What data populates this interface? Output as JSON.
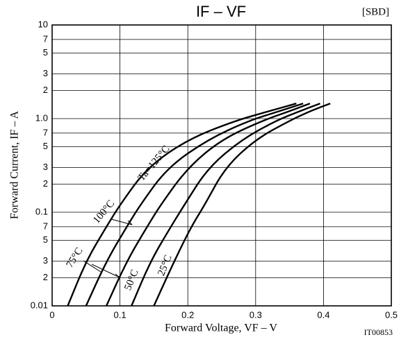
{
  "chart_data": {
    "type": "line",
    "title": "IF – VF",
    "annotations": [
      "[SBD]",
      "IT00853"
    ],
    "x_label": "Forward Voltage, VF – V",
    "y_label": "Forward Current, IF – A",
    "xlim": [
      0,
      0.5
    ],
    "xticks": [
      0,
      0.1,
      0.2,
      0.3,
      0.4,
      0.5
    ],
    "ylim": [
      0.01,
      10
    ],
    "log_y": true,
    "grid": true,
    "yticks": [
      0.01,
      {
        "value": 0.02,
        "label": "2"
      },
      {
        "value": 0.03,
        "label": "3"
      },
      {
        "value": 0.05,
        "label": "5"
      },
      {
        "value": 0.07,
        "label": "7"
      },
      0.1,
      {
        "value": 0.2,
        "label": "2"
      },
      {
        "value": 0.3,
        "label": "3"
      },
      {
        "value": 0.5,
        "label": "5"
      },
      {
        "value": 0.7,
        "label": "7"
      },
      {
        "value": 1,
        "label": "1.0"
      },
      2,
      3,
      5,
      7,
      10
    ],
    "series": [
      {
        "name": "Ta=125°C",
        "color": "#000000",
        "x": [
          0.023,
          0.05,
          0.08,
          0.1,
          0.14,
          0.2,
          0.27,
          0.32,
          0.36
        ],
        "values": [
          0.01,
          0.03,
          0.07,
          0.12,
          0.3,
          0.6,
          0.95,
          1.2,
          1.45
        ]
      },
      {
        "name": "100°C",
        "color": "#000000",
        "x": [
          0.05,
          0.08,
          0.11,
          0.13,
          0.17,
          0.23,
          0.29,
          0.335,
          0.37
        ],
        "values": [
          0.01,
          0.03,
          0.07,
          0.12,
          0.3,
          0.6,
          0.95,
          1.2,
          1.45
        ]
      },
      {
        "name": "75°C",
        "color": "#000000",
        "x": [
          0.08,
          0.11,
          0.14,
          0.16,
          0.2,
          0.25,
          0.31,
          0.35,
          0.38
        ],
        "values": [
          0.01,
          0.03,
          0.07,
          0.12,
          0.3,
          0.6,
          0.95,
          1.2,
          1.45
        ]
      },
      {
        "name": "50°C",
        "color": "#000000",
        "x": [
          0.117,
          0.145,
          0.175,
          0.195,
          0.23,
          0.28,
          0.33,
          0.365,
          0.395
        ],
        "values": [
          0.01,
          0.03,
          0.07,
          0.12,
          0.3,
          0.6,
          0.95,
          1.2,
          1.45
        ]
      },
      {
        "name": "25°C",
        "color": "#000000",
        "x": [
          0.15,
          0.18,
          0.205,
          0.225,
          0.255,
          0.3,
          0.35,
          0.38,
          0.41
        ],
        "values": [
          0.01,
          0.03,
          0.07,
          0.12,
          0.3,
          0.6,
          0.95,
          1.2,
          1.45
        ]
      }
    ]
  }
}
